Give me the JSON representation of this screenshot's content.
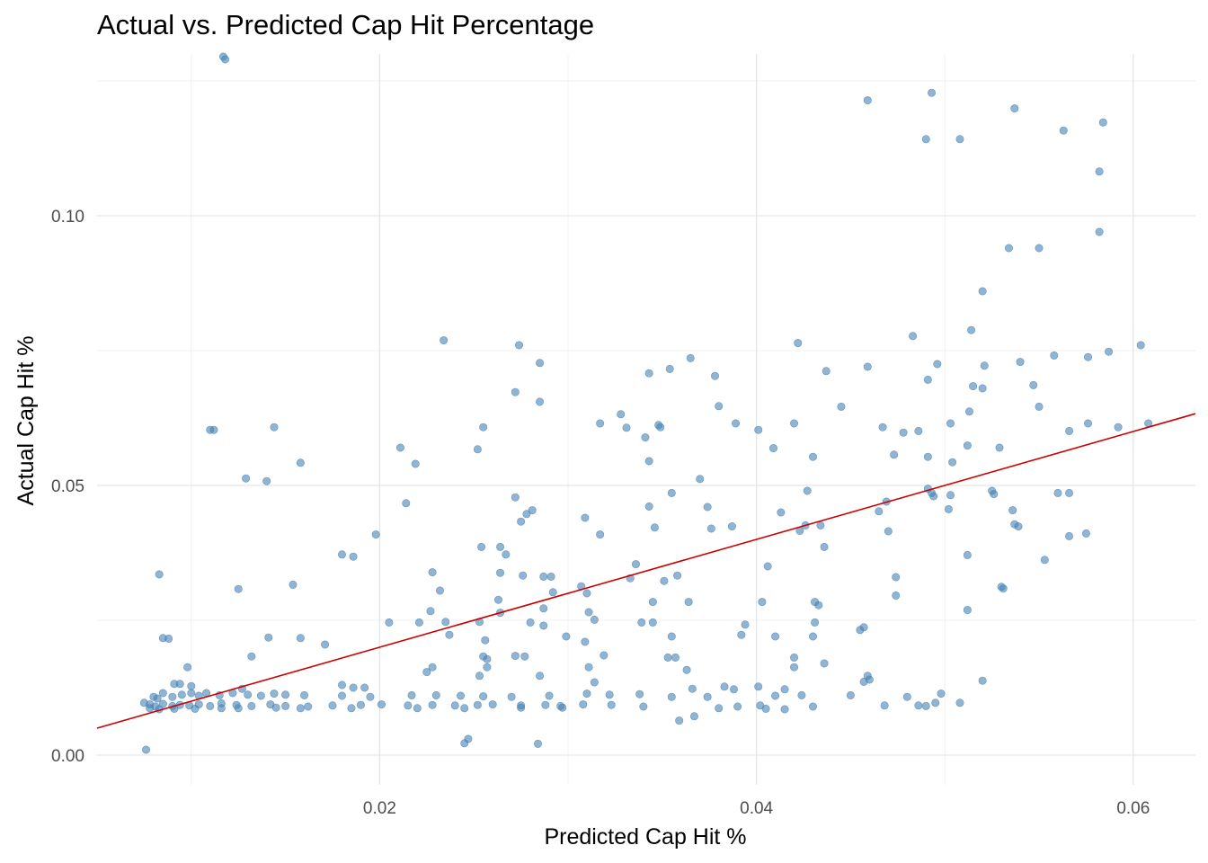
{
  "chart_data": {
    "type": "scatter",
    "title": "Actual vs. Predicted Cap Hit Percentage",
    "xlabel": "Predicted Cap Hit %",
    "ylabel": "Actual Cap Hit %",
    "xlim": [
      0.005,
      0.0633
    ],
    "ylim": [
      -0.0055,
      0.13
    ],
    "x_ticks": [
      0.02,
      0.04,
      0.06
    ],
    "x_tick_labels": [
      "0.02",
      "0.04",
      "0.06"
    ],
    "y_ticks": [
      0.0,
      0.05,
      0.1
    ],
    "y_tick_labels": [
      "0.00",
      "0.05",
      "0.10"
    ],
    "grid": true,
    "legend": "none",
    "point_color": "#4682B4",
    "line_color": "#CC0000",
    "regression_line": {
      "x": [
        0.005,
        0.0633
      ],
      "y": [
        0.005,
        0.0633
      ]
    },
    "points": [
      [
        0.0117,
        0.1295
      ],
      [
        0.0118,
        0.129
      ],
      [
        0.0459,
        0.1214
      ],
      [
        0.0493,
        0.1228
      ],
      [
        0.0537,
        0.1199
      ],
      [
        0.049,
        0.1142
      ],
      [
        0.0508,
        0.1142
      ],
      [
        0.0563,
        0.1158
      ],
      [
        0.0584,
        0.1173
      ],
      [
        0.0582,
        0.1082
      ],
      [
        0.0582,
        0.097
      ],
      [
        0.0534,
        0.094
      ],
      [
        0.055,
        0.094
      ],
      [
        0.052,
        0.086
      ],
      [
        0.0483,
        0.0777
      ],
      [
        0.0514,
        0.0788
      ],
      [
        0.0234,
        0.0769
      ],
      [
        0.0422,
        0.0764
      ],
      [
        0.0274,
        0.076
      ],
      [
        0.0604,
        0.076
      ],
      [
        0.0587,
        0.0748
      ],
      [
        0.0558,
        0.0741
      ],
      [
        0.0576,
        0.0738
      ],
      [
        0.0365,
        0.0736
      ],
      [
        0.054,
        0.0729
      ],
      [
        0.0285,
        0.0727
      ],
      [
        0.0496,
        0.0725
      ],
      [
        0.0521,
        0.0722
      ],
      [
        0.0459,
        0.072
      ],
      [
        0.0354,
        0.0716
      ],
      [
        0.0437,
        0.0712
      ],
      [
        0.0343,
        0.0708
      ],
      [
        0.0378,
        0.0703
      ],
      [
        0.0491,
        0.0696
      ],
      [
        0.0515,
        0.0684
      ],
      [
        0.052,
        0.068
      ],
      [
        0.0547,
        0.0686
      ],
      [
        0.0272,
        0.0673
      ],
      [
        0.0285,
        0.0655
      ],
      [
        0.038,
        0.0647
      ],
      [
        0.0445,
        0.0646
      ],
      [
        0.055,
        0.0646
      ],
      [
        0.0513,
        0.0637
      ],
      [
        0.0328,
        0.0632
      ],
      [
        0.011,
        0.0603
      ],
      [
        0.0112,
        0.0603
      ],
      [
        0.0144,
        0.0608
      ],
      [
        0.0255,
        0.0608
      ],
      [
        0.0317,
        0.0615
      ],
      [
        0.0331,
        0.0607
      ],
      [
        0.0348,
        0.0612
      ],
      [
        0.0349,
        0.0608
      ],
      [
        0.0389,
        0.0615
      ],
      [
        0.0401,
        0.0603
      ],
      [
        0.042,
        0.0615
      ],
      [
        0.0467,
        0.0608
      ],
      [
        0.0478,
        0.0598
      ],
      [
        0.0486,
        0.0601
      ],
      [
        0.0503,
        0.0615
      ],
      [
        0.0566,
        0.0601
      ],
      [
        0.0576,
        0.0615
      ],
      [
        0.0592,
        0.0608
      ],
      [
        0.0608,
        0.0615
      ],
      [
        0.0341,
        0.0589
      ],
      [
        0.0529,
        0.057
      ],
      [
        0.0211,
        0.057
      ],
      [
        0.0252,
        0.0567
      ],
      [
        0.0409,
        0.0569
      ],
      [
        0.0512,
        0.0574
      ],
      [
        0.0473,
        0.0557
      ],
      [
        0.043,
        0.0553
      ],
      [
        0.0491,
        0.0553
      ],
      [
        0.0219,
        0.054
      ],
      [
        0.0158,
        0.0542
      ],
      [
        0.0343,
        0.0545
      ],
      [
        0.0504,
        0.0543
      ],
      [
        0.0129,
        0.0513
      ],
      [
        0.014,
        0.0508
      ],
      [
        0.037,
        0.0512
      ],
      [
        0.0491,
        0.0494
      ],
      [
        0.0493,
        0.0486
      ],
      [
        0.0427,
        0.049
      ],
      [
        0.0525,
        0.049
      ],
      [
        0.0526,
        0.0484
      ],
      [
        0.0494,
        0.048
      ],
      [
        0.0503,
        0.0482
      ],
      [
        0.056,
        0.0486
      ],
      [
        0.0566,
        0.0486
      ],
      [
        0.0355,
        0.0486
      ],
      [
        0.0272,
        0.0478
      ],
      [
        0.0214,
        0.0467
      ],
      [
        0.0469,
        0.047
      ],
      [
        0.0343,
        0.0461
      ],
      [
        0.0374,
        0.046
      ],
      [
        0.0465,
        0.0452
      ],
      [
        0.0502,
        0.0456
      ],
      [
        0.0536,
        0.0454
      ],
      [
        0.0281,
        0.0454
      ],
      [
        0.0278,
        0.0447
      ],
      [
        0.0413,
        0.045
      ],
      [
        0.0309,
        0.044
      ],
      [
        0.0275,
        0.0433
      ],
      [
        0.0426,
        0.0426
      ],
      [
        0.0434,
        0.0426
      ],
      [
        0.0537,
        0.0428
      ],
      [
        0.0539,
        0.0424
      ],
      [
        0.0346,
        0.0422
      ],
      [
        0.0376,
        0.042
      ],
      [
        0.0387,
        0.0424
      ],
      [
        0.0423,
        0.0416
      ],
      [
        0.047,
        0.0415
      ],
      [
        0.0566,
        0.0406
      ],
      [
        0.0575,
        0.0411
      ],
      [
        0.0198,
        0.0409
      ],
      [
        0.0317,
        0.0409
      ],
      [
        0.0254,
        0.0386
      ],
      [
        0.0264,
        0.0386
      ],
      [
        0.0436,
        0.0386
      ],
      [
        0.018,
        0.0372
      ],
      [
        0.0186,
        0.0368
      ],
      [
        0.0267,
        0.0372
      ],
      [
        0.0512,
        0.0371
      ],
      [
        0.0553,
        0.0362
      ],
      [
        0.0336,
        0.0354
      ],
      [
        0.0406,
        0.035
      ],
      [
        0.0228,
        0.0339
      ],
      [
        0.0083,
        0.0335
      ],
      [
        0.0264,
        0.0338
      ],
      [
        0.0276,
        0.0333
      ],
      [
        0.0287,
        0.0331
      ],
      [
        0.0291,
        0.0331
      ],
      [
        0.0333,
        0.0328
      ],
      [
        0.0358,
        0.0333
      ],
      [
        0.0351,
        0.0323
      ],
      [
        0.0474,
        0.033
      ],
      [
        0.0154,
        0.0316
      ],
      [
        0.0307,
        0.0313
      ],
      [
        0.0125,
        0.0308
      ],
      [
        0.0232,
        0.0305
      ],
      [
        0.053,
        0.0312
      ],
      [
        0.0531,
        0.0309
      ],
      [
        0.0292,
        0.0302
      ],
      [
        0.031,
        0.03
      ],
      [
        0.0474,
        0.0296
      ],
      [
        0.0263,
        0.0288
      ],
      [
        0.0364,
        0.0284
      ],
      [
        0.0403,
        0.0284
      ],
      [
        0.0345,
        0.0284
      ],
      [
        0.0431,
        0.0284
      ],
      [
        0.0433,
        0.0278
      ],
      [
        0.0287,
        0.0272
      ],
      [
        0.0227,
        0.0267
      ],
      [
        0.0264,
        0.0264
      ],
      [
        0.0311,
        0.0265
      ],
      [
        0.0512,
        0.0269
      ],
      [
        0.0314,
        0.0251
      ],
      [
        0.0235,
        0.0247
      ],
      [
        0.0205,
        0.0246
      ],
      [
        0.0221,
        0.0246
      ],
      [
        0.0253,
        0.0247
      ],
      [
        0.028,
        0.0246
      ],
      [
        0.0287,
        0.024
      ],
      [
        0.0339,
        0.0246
      ],
      [
        0.0345,
        0.0246
      ],
      [
        0.0394,
        0.0242
      ],
      [
        0.0431,
        0.0246
      ],
      [
        0.0457,
        0.0237
      ],
      [
        0.0455,
        0.0232
      ],
      [
        0.0237,
        0.0223
      ],
      [
        0.0085,
        0.0217
      ],
      [
        0.0088,
        0.0216
      ],
      [
        0.0141,
        0.0218
      ],
      [
        0.0158,
        0.0217
      ],
      [
        0.0256,
        0.0213
      ],
      [
        0.0299,
        0.022
      ],
      [
        0.0309,
        0.021
      ],
      [
        0.0355,
        0.022
      ],
      [
        0.0392,
        0.0223
      ],
      [
        0.041,
        0.022
      ],
      [
        0.043,
        0.022
      ],
      [
        0.0171,
        0.0205
      ],
      [
        0.0132,
        0.0183
      ],
      [
        0.0255,
        0.0183
      ],
      [
        0.0272,
        0.0184
      ],
      [
        0.0277,
        0.0183
      ],
      [
        0.0319,
        0.0185
      ],
      [
        0.0353,
        0.0181
      ],
      [
        0.0357,
        0.0181
      ],
      [
        0.042,
        0.0181
      ],
      [
        0.0257,
        0.0178
      ],
      [
        0.0225,
        0.0154
      ],
      [
        0.0228,
        0.0163
      ],
      [
        0.0098,
        0.0163
      ],
      [
        0.0436,
        0.017
      ],
      [
        0.0257,
        0.0163
      ],
      [
        0.0311,
        0.0163
      ],
      [
        0.0363,
        0.0158
      ],
      [
        0.042,
        0.0163
      ],
      [
        0.0459,
        0.0147
      ],
      [
        0.046,
        0.014
      ],
      [
        0.0253,
        0.0147
      ],
      [
        0.0285,
        0.0147
      ],
      [
        0.0314,
        0.0135
      ],
      [
        0.0457,
        0.0136
      ],
      [
        0.052,
        0.0138
      ],
      [
        0.0091,
        0.0132
      ],
      [
        0.0094,
        0.0132
      ],
      [
        0.01,
        0.0128
      ],
      [
        0.0127,
        0.0123
      ],
      [
        0.018,
        0.013
      ],
      [
        0.0186,
        0.0125
      ],
      [
        0.0192,
        0.0125
      ],
      [
        0.0366,
        0.0123
      ],
      [
        0.0383,
        0.0127
      ],
      [
        0.0388,
        0.0122
      ],
      [
        0.0401,
        0.0127
      ],
      [
        0.0415,
        0.0122
      ],
      [
        0.008,
        0.0108
      ],
      [
        0.0082,
        0.0105
      ],
      [
        0.0085,
        0.0115
      ],
      [
        0.009,
        0.0108
      ],
      [
        0.0095,
        0.0112
      ],
      [
        0.01,
        0.0115
      ],
      [
        0.0104,
        0.011
      ],
      [
        0.0108,
        0.0115
      ],
      [
        0.0115,
        0.0111
      ],
      [
        0.0122,
        0.0115
      ],
      [
        0.013,
        0.0112
      ],
      [
        0.0137,
        0.011
      ],
      [
        0.0144,
        0.0114
      ],
      [
        0.015,
        0.0112
      ],
      [
        0.016,
        0.0111
      ],
      [
        0.018,
        0.011
      ],
      [
        0.0195,
        0.0108
      ],
      [
        0.0217,
        0.0111
      ],
      [
        0.023,
        0.0111
      ],
      [
        0.0243,
        0.011
      ],
      [
        0.0255,
        0.0109
      ],
      [
        0.027,
        0.0108
      ],
      [
        0.029,
        0.011
      ],
      [
        0.031,
        0.0114
      ],
      [
        0.0322,
        0.0112
      ],
      [
        0.0338,
        0.0113
      ],
      [
        0.0355,
        0.0108
      ],
      [
        0.0374,
        0.0108
      ],
      [
        0.041,
        0.011
      ],
      [
        0.0424,
        0.0111
      ],
      [
        0.045,
        0.0111
      ],
      [
        0.048,
        0.0108
      ],
      [
        0.0498,
        0.0114
      ],
      [
        0.0075,
        0.0097
      ],
      [
        0.0078,
        0.0094
      ],
      [
        0.0081,
        0.009
      ],
      [
        0.0085,
        0.0095
      ],
      [
        0.009,
        0.0091
      ],
      [
        0.0094,
        0.0093
      ],
      [
        0.0099,
        0.0092
      ],
      [
        0.0104,
        0.0094
      ],
      [
        0.011,
        0.0091
      ],
      [
        0.0116,
        0.0096
      ],
      [
        0.0124,
        0.0093
      ],
      [
        0.0132,
        0.0091
      ],
      [
        0.0142,
        0.0094
      ],
      [
        0.015,
        0.0091
      ],
      [
        0.0162,
        0.009
      ],
      [
        0.0175,
        0.0092
      ],
      [
        0.019,
        0.0093
      ],
      [
        0.0201,
        0.0094
      ],
      [
        0.0215,
        0.0092
      ],
      [
        0.0228,
        0.0093
      ],
      [
        0.024,
        0.0092
      ],
      [
        0.0252,
        0.0093
      ],
      [
        0.026,
        0.0094
      ],
      [
        0.0275,
        0.0092
      ],
      [
        0.0288,
        0.0093
      ],
      [
        0.0296,
        0.0091
      ],
      [
        0.0308,
        0.0094
      ],
      [
        0.0323,
        0.0093
      ],
      [
        0.034,
        0.009
      ],
      [
        0.039,
        0.009
      ],
      [
        0.0402,
        0.0092
      ],
      [
        0.043,
        0.009
      ],
      [
        0.0468,
        0.0092
      ],
      [
        0.0486,
        0.0092
      ],
      [
        0.049,
        0.0091
      ],
      [
        0.0495,
        0.0097
      ],
      [
        0.0508,
        0.0097
      ],
      [
        0.0078,
        0.0087
      ],
      [
        0.0083,
        0.0085
      ],
      [
        0.0091,
        0.0086
      ],
      [
        0.0102,
        0.0086
      ],
      [
        0.0116,
        0.0087
      ],
      [
        0.0125,
        0.0087
      ],
      [
        0.0145,
        0.0088
      ],
      [
        0.0158,
        0.0087
      ],
      [
        0.0185,
        0.0087
      ],
      [
        0.022,
        0.0087
      ],
      [
        0.0245,
        0.0087
      ],
      [
        0.0275,
        0.0088
      ],
      [
        0.0297,
        0.0088
      ],
      [
        0.038,
        0.0087
      ],
      [
        0.0405,
        0.0086
      ],
      [
        0.0415,
        0.0085
      ],
      [
        0.0076,
        0.001
      ],
      [
        0.0245,
        0.0022
      ],
      [
        0.0247,
        0.003
      ],
      [
        0.0284,
        0.0021
      ],
      [
        0.0359,
        0.0064
      ],
      [
        0.0367,
        0.0072
      ]
    ]
  }
}
